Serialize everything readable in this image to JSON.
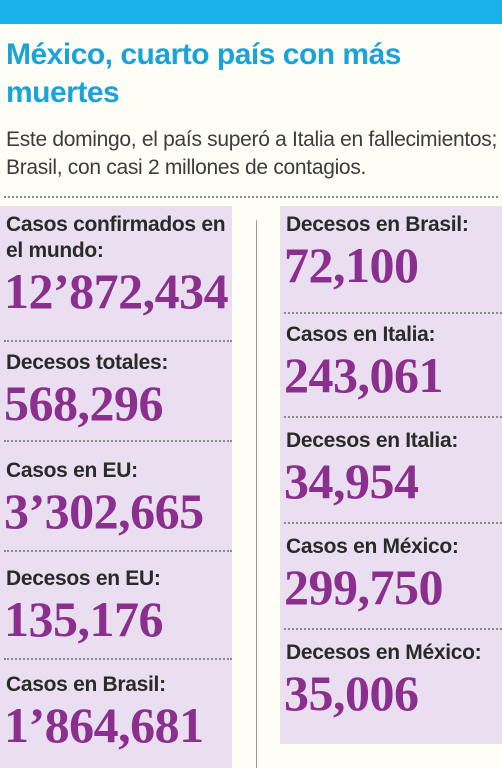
{
  "headline": "México, cuarto país con más muertes",
  "dek": "Este domingo, el país superó a Italia en fallecimientos; Brasil, con casi 2 millones de contagios.",
  "colors": {
    "accent_blue": "#1ab0ea",
    "panel": "#eadff0",
    "value": "#8b2f8f"
  },
  "left_stats": [
    {
      "label": "Casos confirmados en el mundo:",
      "value": "12’872,434"
    },
    {
      "label": "Decesos totales:",
      "value": "568,296"
    },
    {
      "label": "Casos en EU:",
      "value": "3’302,665"
    },
    {
      "label": "Decesos en EU:",
      "value": "135,176"
    },
    {
      "label": "Casos en Brasil:",
      "value": "1’864,681"
    }
  ],
  "right_stats": [
    {
      "label": "Decesos en Brasil:",
      "value": "72,100"
    },
    {
      "label": "Casos en Italia:",
      "value": "243,061"
    },
    {
      "label": "Decesos en Italia:",
      "value": "34,954"
    },
    {
      "label": "Casos en México:",
      "value": "299,750"
    },
    {
      "label": "Decesos en México:",
      "value": "35,006"
    }
  ]
}
